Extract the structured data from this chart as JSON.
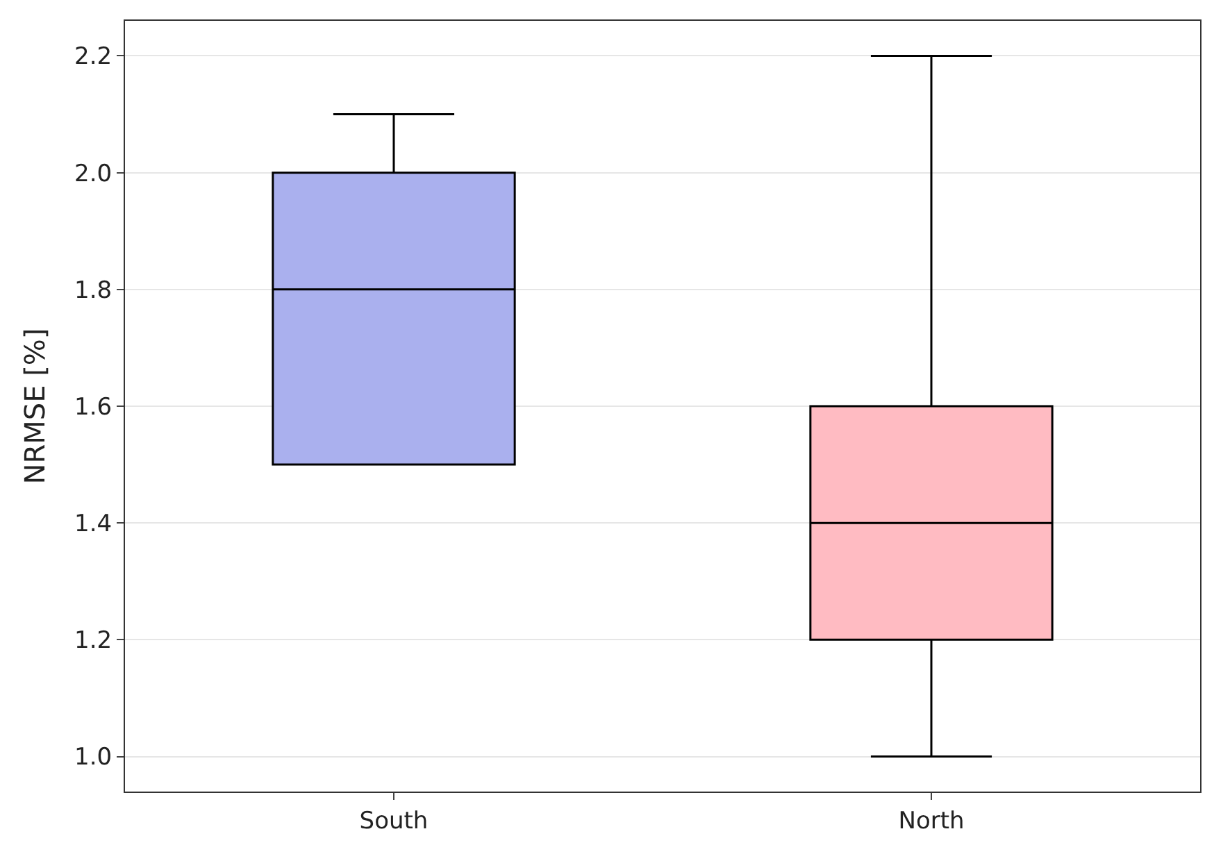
{
  "chart_data": {
    "type": "box",
    "ylabel": "NRMSE [%]",
    "categories": [
      "South",
      "North"
    ],
    "boxes": [
      {
        "low": 1.5,
        "q1": 1.5,
        "median": 1.8,
        "q3": 2.0,
        "high": 2.1
      },
      {
        "low": 1.0,
        "q1": 1.2,
        "median": 1.4,
        "q3": 1.6,
        "high": 2.2
      }
    ],
    "colors": [
      "#aab0ee",
      "#ffbbc2"
    ],
    "ylim": [
      0.94,
      2.26
    ],
    "yticks": [
      {
        "value": 1.0,
        "label": "1.0"
      },
      {
        "value": 1.2,
        "label": "1.2"
      },
      {
        "value": 1.4,
        "label": "1.4"
      },
      {
        "value": 1.6,
        "label": "1.6"
      },
      {
        "value": 1.8,
        "label": "1.8"
      },
      {
        "value": 2.0,
        "label": "2.0"
      },
      {
        "value": 2.2,
        "label": "2.2"
      }
    ],
    "grid": "y",
    "legend": false
  }
}
